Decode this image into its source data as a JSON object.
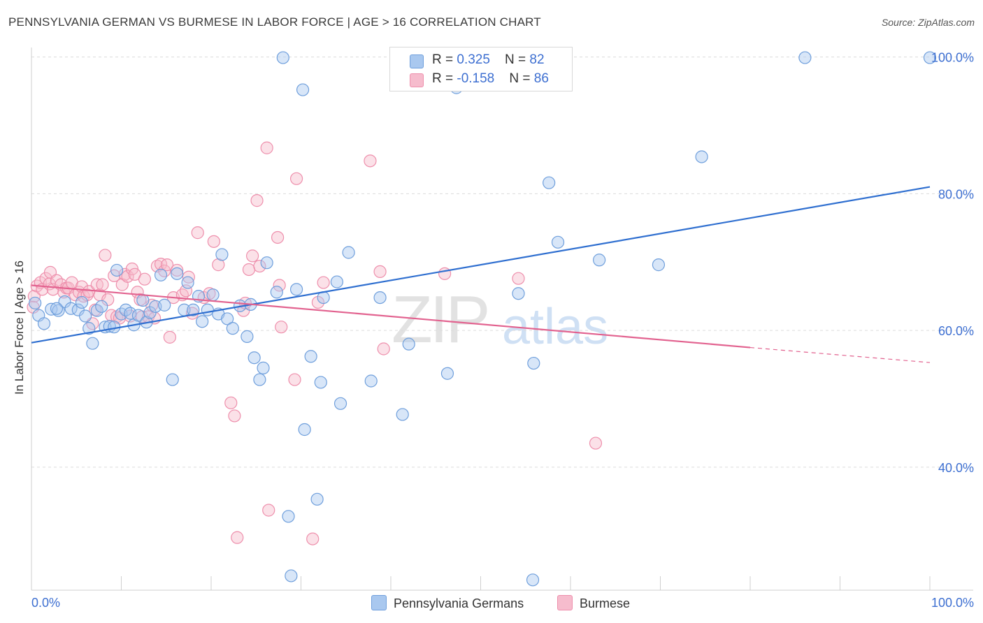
{
  "title": "PENNSYLVANIA GERMAN VS BURMESE IN LABOR FORCE | AGE > 16 CORRELATION CHART",
  "source": "Source: ZipAtlas.com",
  "watermark": {
    "zip": "ZIP",
    "atlas": "atlas"
  },
  "legend": {
    "rows": [
      {
        "r_label": "R = ",
        "r_value": "0.325",
        "n_label": "N = ",
        "n_value": "82"
      },
      {
        "r_label": "R = ",
        "r_value": "-0.158",
        "n_label": "N = ",
        "n_value": "86"
      }
    ],
    "bottom": [
      "Pennsylvania Germans",
      "Burmese"
    ]
  },
  "colors": {
    "blue_fill": "#a9c8ef",
    "blue_stroke": "#6f9fdc",
    "blue_line": "#2f6fd0",
    "pink_fill": "#f6bccd",
    "pink_stroke": "#ee8fac",
    "pink_line": "#e2628f",
    "axis_text": "#3d6fd1",
    "grid": "#dcdcdc"
  },
  "chart_data": {
    "type": "scatter",
    "title": "PENNSYLVANIA GERMAN VS BURMESE IN LABOR FORCE | AGE > 16 CORRELATION CHART",
    "xlabel": "",
    "ylabel": "In Labor Force | Age > 16",
    "xlim": [
      0,
      100
    ],
    "ylim": [
      22,
      102
    ],
    "x_tick_labels": [
      "0.0%",
      "100.0%"
    ],
    "y_ticks": [
      40,
      60,
      80,
      100
    ],
    "y_tick_labels": [
      "40.0%",
      "60.0%",
      "80.0%",
      "100.0%"
    ],
    "grid": true,
    "series": [
      {
        "name": "Pennsylvania Germans",
        "r": 0.325,
        "n": 82,
        "trend": {
          "x": [
            0,
            100
          ],
          "y": [
            58.2,
            81.0
          ]
        },
        "points": [
          [
            0.8,
            62.2
          ],
          [
            1.4,
            61.0
          ],
          [
            2.2,
            63.1
          ],
          [
            3,
            62.9
          ],
          [
            3.7,
            64.2
          ],
          [
            4.4,
            63.2
          ],
          [
            5.2,
            63.0
          ],
          [
            5.6,
            64.1
          ],
          [
            6,
            62.1
          ],
          [
            6.4,
            60.3
          ],
          [
            6.8,
            58.1
          ],
          [
            7.3,
            62.9
          ],
          [
            7.8,
            63.5
          ],
          [
            8.2,
            60.5
          ],
          [
            8.7,
            60.6
          ],
          [
            9.2,
            60.5
          ],
          [
            9.5,
            68.8
          ],
          [
            10,
            62.4
          ],
          [
            10.5,
            63.0
          ],
          [
            11,
            62.5
          ],
          [
            11.4,
            60.8
          ],
          [
            11.9,
            62.2
          ],
          [
            12.4,
            64.4
          ],
          [
            12.8,
            61.2
          ],
          [
            13.2,
            62.6
          ],
          [
            13.8,
            63.5
          ],
          [
            14.4,
            68.1
          ],
          [
            14.8,
            63.7
          ],
          [
            15.7,
            52.8
          ],
          [
            16.2,
            68.3
          ],
          [
            17,
            63.0
          ],
          [
            17.4,
            67.0
          ],
          [
            18,
            63.0
          ],
          [
            18.6,
            65.0
          ],
          [
            19,
            61.3
          ],
          [
            19.6,
            63.0
          ],
          [
            20.2,
            65.2
          ],
          [
            20.8,
            62.4
          ],
          [
            21.2,
            71.1
          ],
          [
            21.8,
            61.7
          ],
          [
            22.4,
            60.3
          ],
          [
            23.2,
            63.6
          ],
          [
            24,
            59.1
          ],
          [
            24.4,
            63.8
          ],
          [
            24.8,
            56.0
          ],
          [
            25.4,
            52.8
          ],
          [
            25.8,
            54.5
          ],
          [
            26.2,
            69.9
          ],
          [
            27.3,
            65.6
          ],
          [
            28,
            99.9
          ],
          [
            28.6,
            32.8
          ],
          [
            28.9,
            24.1
          ],
          [
            29.5,
            66.0
          ],
          [
            30.2,
            95.2
          ],
          [
            30.4,
            45.5
          ],
          [
            31.1,
            56.2
          ],
          [
            31.8,
            35.3
          ],
          [
            32.2,
            52.4
          ],
          [
            32.5,
            64.8
          ],
          [
            34,
            67.1
          ],
          [
            34.4,
            49.3
          ],
          [
            35.3,
            71.4
          ],
          [
            37.8,
            52.6
          ],
          [
            38.8,
            64.8
          ],
          [
            41.3,
            47.7
          ],
          [
            42,
            58.0
          ],
          [
            43,
            99.9
          ],
          [
            46.3,
            53.7
          ],
          [
            47.3,
            95.5
          ],
          [
            48.5,
            99.9
          ],
          [
            54.2,
            65.4
          ],
          [
            55.8,
            23.5
          ],
          [
            55.9,
            55.2
          ],
          [
            57.6,
            81.6
          ],
          [
            58.6,
            72.9
          ],
          [
            63.2,
            70.3
          ],
          [
            69.8,
            69.6
          ],
          [
            74.6,
            85.4
          ],
          [
            86.1,
            99.9
          ],
          [
            100,
            99.9
          ],
          [
            0.4,
            64.0
          ],
          [
            2.8,
            63.2
          ]
        ]
      },
      {
        "name": "Burmese",
        "r": -0.158,
        "n": 86,
        "trend": {
          "x": [
            0,
            80
          ],
          "y": [
            66.6,
            57.5
          ]
        },
        "trend_dashed": {
          "x": [
            80,
            100
          ],
          "y": [
            57.5,
            55.3
          ]
        },
        "points": [
          [
            0.3,
            65.0
          ],
          [
            0.6,
            66.5
          ],
          [
            1,
            67.0
          ],
          [
            1.2,
            66.0
          ],
          [
            1.6,
            67.6
          ],
          [
            2,
            66.8
          ],
          [
            2.1,
            68.5
          ],
          [
            2.4,
            66.0
          ],
          [
            2.8,
            67.3
          ],
          [
            3.3,
            66.7
          ],
          [
            3.6,
            65.6
          ],
          [
            3.9,
            66.2
          ],
          [
            4.1,
            66.2
          ],
          [
            4.5,
            67.0
          ],
          [
            4.9,
            65.2
          ],
          [
            5.3,
            65.6
          ],
          [
            5.6,
            66.4
          ],
          [
            5.8,
            65.0
          ],
          [
            6.2,
            65.2
          ],
          [
            6.4,
            65.7
          ],
          [
            6.8,
            61.0
          ],
          [
            7.1,
            63.0
          ],
          [
            7.3,
            66.7
          ],
          [
            7.6,
            65.2
          ],
          [
            7.9,
            66.7
          ],
          [
            8.2,
            71.0
          ],
          [
            8.5,
            64.5
          ],
          [
            8.9,
            62.2
          ],
          [
            9.2,
            68.0
          ],
          [
            9.5,
            62.0
          ],
          [
            9.8,
            61.8
          ],
          [
            10.1,
            66.7
          ],
          [
            10.4,
            68.2
          ],
          [
            10.7,
            67.9
          ],
          [
            11,
            62.1
          ],
          [
            11.2,
            69.0
          ],
          [
            11.5,
            68.2
          ],
          [
            11.8,
            65.6
          ],
          [
            12.1,
            64.5
          ],
          [
            12.3,
            62.0
          ],
          [
            12.6,
            67.5
          ],
          [
            13,
            62.0
          ],
          [
            13.4,
            63.7
          ],
          [
            13.7,
            61.8
          ],
          [
            14,
            69.4
          ],
          [
            14.4,
            69.7
          ],
          [
            14.8,
            68.7
          ],
          [
            15.1,
            69.6
          ],
          [
            15.4,
            59.0
          ],
          [
            15.8,
            64.8
          ],
          [
            16.2,
            68.8
          ],
          [
            16.8,
            65.2
          ],
          [
            17.2,
            65.8
          ],
          [
            17.5,
            67.8
          ],
          [
            17.9,
            62.5
          ],
          [
            18.5,
            74.3
          ],
          [
            19.2,
            64.8
          ],
          [
            19.8,
            65.4
          ],
          [
            20.3,
            73.0
          ],
          [
            20.8,
            69.6
          ],
          [
            22.2,
            49.4
          ],
          [
            22.6,
            47.5
          ],
          [
            22.9,
            29.7
          ],
          [
            23.6,
            62.9
          ],
          [
            23.8,
            64.0
          ],
          [
            24.2,
            68.9
          ],
          [
            24.6,
            70.9
          ],
          [
            25.1,
            79.0
          ],
          [
            25.4,
            69.4
          ],
          [
            26.2,
            86.7
          ],
          [
            26.4,
            33.7
          ],
          [
            27.4,
            73.6
          ],
          [
            27.8,
            60.5
          ],
          [
            27.6,
            66.6
          ],
          [
            29.3,
            52.8
          ],
          [
            29.5,
            82.2
          ],
          [
            31.3,
            29.5
          ],
          [
            31.9,
            64.1
          ],
          [
            32.5,
            67.0
          ],
          [
            37.7,
            84.8
          ],
          [
            38.8,
            68.6
          ],
          [
            39.2,
            57.3
          ],
          [
            46,
            68.3
          ],
          [
            54.2,
            67.6
          ],
          [
            62.8,
            43.5
          ],
          [
            0.2,
            63.4
          ]
        ]
      }
    ]
  }
}
